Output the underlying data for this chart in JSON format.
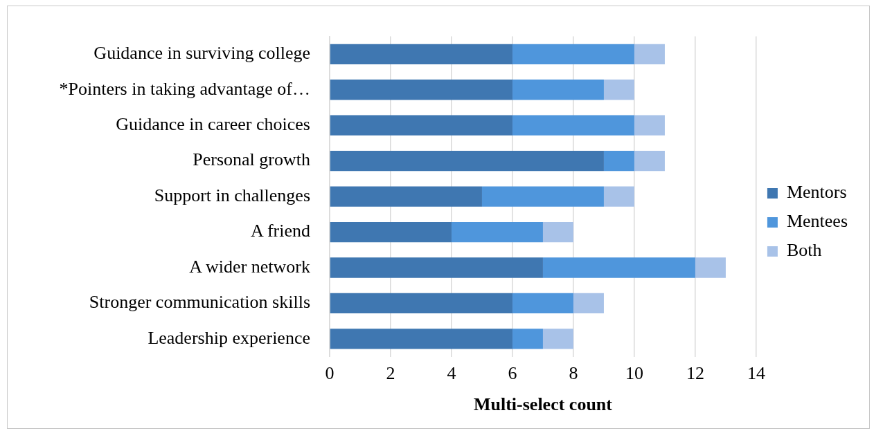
{
  "chart_data": {
    "type": "bar",
    "orientation": "horizontal",
    "stacked": true,
    "xlabel": "Multi-select count",
    "categories": [
      "Guidance in surviving college",
      "*Pointers in taking advantage of…",
      "Guidance in career choices",
      "Personal growth",
      "Support in challenges",
      "A friend",
      "A wider network",
      "Stronger communication skills",
      "Leadership experience"
    ],
    "series": [
      {
        "name": "Mentors",
        "color": "#3f77b1",
        "values": [
          6,
          6,
          6,
          9,
          5,
          4,
          7,
          6,
          6
        ]
      },
      {
        "name": "Mentees",
        "color": "#4f96dc",
        "values": [
          4,
          3,
          4,
          1,
          4,
          3,
          5,
          2,
          1
        ]
      },
      {
        "name": "Both",
        "color": "#a8c2e8",
        "values": [
          1,
          1,
          1,
          1,
          1,
          1,
          1,
          1,
          1
        ]
      }
    ],
    "xlim": [
      0,
      14
    ],
    "xticks": [
      0,
      2,
      4,
      6,
      8,
      10,
      12,
      14
    ],
    "grid": "x",
    "legend": "right"
  }
}
